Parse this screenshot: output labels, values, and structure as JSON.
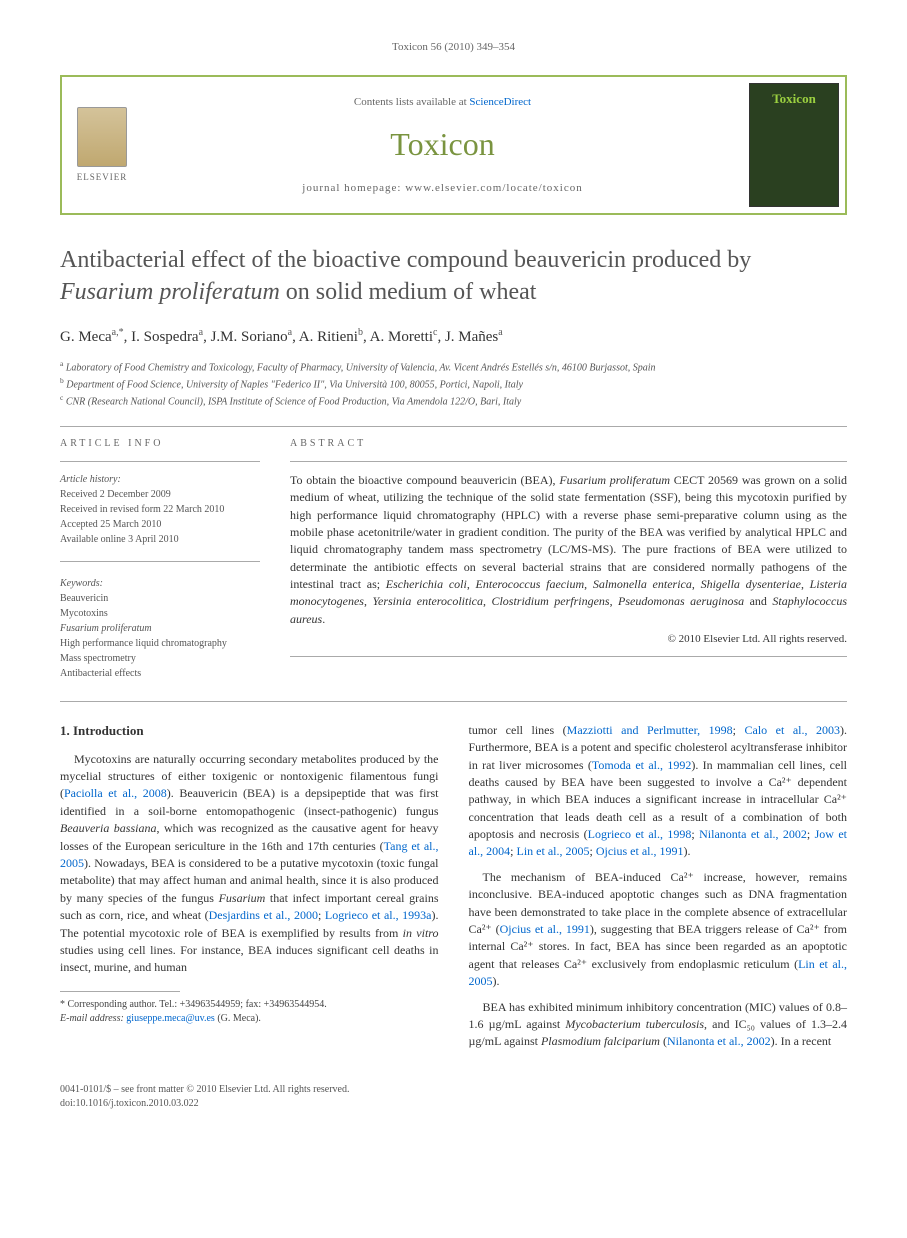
{
  "running_header": "Toxicon 56 (2010) 349–354",
  "journal_box": {
    "contents_prefix": "Contents lists available at ",
    "contents_link": "ScienceDirect",
    "journal_name": "Toxicon",
    "homepage_prefix": "journal homepage: ",
    "homepage_url": "www.elsevier.com/locate/toxicon",
    "publisher": "ELSEVIER",
    "cover_label": "Toxicon"
  },
  "title_line1": "Antibacterial effect of the bioactive compound beauvericin produced by",
  "title_line2_italic": "Fusarium proliferatum",
  "title_line2_rest": " on solid medium of wheat",
  "authors_html": "G. Meca",
  "authors": [
    {
      "name": "G. Meca",
      "sup": "a,*"
    },
    {
      "name": "I. Sospedra",
      "sup": "a"
    },
    {
      "name": "J.M. Soriano",
      "sup": "a"
    },
    {
      "name": "A. Ritieni",
      "sup": "b"
    },
    {
      "name": "A. Moretti",
      "sup": "c"
    },
    {
      "name": "J. Mañes",
      "sup": "a"
    }
  ],
  "affiliations": [
    {
      "sup": "a",
      "text": "Laboratory of Food Chemistry and Toxicology, Faculty of Pharmacy, University of Valencia, Av. Vicent Andrés Estellés s/n, 46100 Burjassot, Spain"
    },
    {
      "sup": "b",
      "text": "Department of Food Science, University of Naples \"Federico II\", Via Università 100, 80055, Portici, Napoli, Italy"
    },
    {
      "sup": "c",
      "text": "CNR (Research National Council), ISPA Institute of Science of Food Production, Via Amendola 122/O, Bari, Italy"
    }
  ],
  "info_heading": "ARTICLE INFO",
  "abstract_heading": "ABSTRACT",
  "history": {
    "label": "Article history:",
    "received": "Received 2 December 2009",
    "revised": "Received in revised form 22 March 2010",
    "accepted": "Accepted 25 March 2010",
    "online": "Available online 3 April 2010"
  },
  "keywords": {
    "label": "Keywords:",
    "items": [
      "Beauvericin",
      "Mycotoxins",
      "Fusarium proliferatum",
      "High performance liquid chromatography",
      "Mass spectrometry",
      "Antibacterial effects"
    ]
  },
  "abstract": "To obtain the bioactive compound beauvericin (BEA), Fusarium proliferatum CECT 20569 was grown on a solid medium of wheat, utilizing the technique of the solid state fermentation (SSF), being this mycotoxin purified by high performance liquid chromatography (HPLC) with a reverse phase semi-preparative column using as the mobile phase acetonitrile/water in gradient condition. The purity of the BEA was verified by analytical HPLC and liquid chromatography tandem mass spectrometry (LC/MS-MS). The pure fractions of BEA were utilized to determinate the antibiotic effects on several bacterial strains that are considered normally pathogens of the intestinal tract as; Escherichia coli, Enterococcus faecium, Salmonella enterica, Shigella dysenteriae, Listeria monocytogenes, Yersinia enterocolitica, Clostridium perfringens, Pseudomonas aeruginosa and Staphylococcus aureus.",
  "copyright": "© 2010 Elsevier Ltd. All rights reserved.",
  "intro_heading": "1. Introduction",
  "intro_p1": "Mycotoxins are naturally occurring secondary metabolites produced by the mycelial structures of either toxigenic or nontoxigenic filamentous fungi (Paciolla et al., 2008). Beauvericin (BEA) is a depsipeptide that was first identified in a soil-borne entomopathogenic (insect-pathogenic) fungus Beauveria bassiana, which was recognized as the causative agent for heavy losses of the European sericulture in the 16th and 17th centuries (Tang et al., 2005). Nowadays, BEA is considered to be a putative mycotoxin (toxic fungal metabolite) that may affect human and animal health, since it is also produced by many species of the fungus Fusarium that infect important cereal grains such as corn, rice, and wheat (Desjardins et al., 2000; Logrieco et al., 1993a). The potential mycotoxic role of BEA is exemplified by results from in vitro studies using cell lines. For instance, BEA induces significant cell deaths in insect, murine, and human",
  "col2_p1": "tumor cell lines (Mazziotti and Perlmutter, 1998; Calo et al., 2003). Furthermore, BEA is a potent and specific cholesterol acyltransferase inhibitor in rat liver microsomes (Tomoda et al., 1992). In mammalian cell lines, cell deaths caused by BEA have been suggested to involve a Ca²⁺ dependent pathway, in which BEA induces a significant increase in intracellular Ca²⁺ concentration that leads death cell as a result of a combination of both apoptosis and necrosis (Logrieco et al., 1998; Nilanonta et al., 2002; Jow et al., 2004; Lin et al., 2005; Ojcius et al., 1991).",
  "col2_p2": "The mechanism of BEA-induced Ca²⁺ increase, however, remains inconclusive. BEA-induced apoptotic changes such as DNA fragmentation have been demonstrated to take place in the complete absence of extracellular Ca²⁺ (Ojcius et al., 1991), suggesting that BEA triggers release of Ca²⁺ from internal Ca²⁺ stores. In fact, BEA has since been regarded as an apoptotic agent that releases Ca²⁺ exclusively from endoplasmic reticulum (Lin et al., 2005).",
  "col2_p3": "BEA has exhibited minimum inhibitory concentration (MIC) values of 0.8–1.6 µg/mL against Mycobacterium tuberculosis, and IC₅₀ values of 1.3–2.4 µg/mL against Plasmodium falciparium (Nilanonta et al., 2002). In a recent",
  "footnote": {
    "corr_label": "* Corresponding author. Tel.: +34963544959; fax: +34963544954.",
    "email_label": "E-mail address:",
    "email": "giuseppe.meca@uv.es",
    "email_suffix": " (G. Meca)."
  },
  "bottom": {
    "line1": "0041-0101/$ – see front matter © 2010 Elsevier Ltd. All rights reserved.",
    "line2": "doi:10.1016/j.toxicon.2010.03.022"
  },
  "colors": {
    "accent_green": "#9bbb59",
    "journal_green": "#7a9440",
    "link_blue": "#0066cc",
    "text_gray": "#555"
  }
}
